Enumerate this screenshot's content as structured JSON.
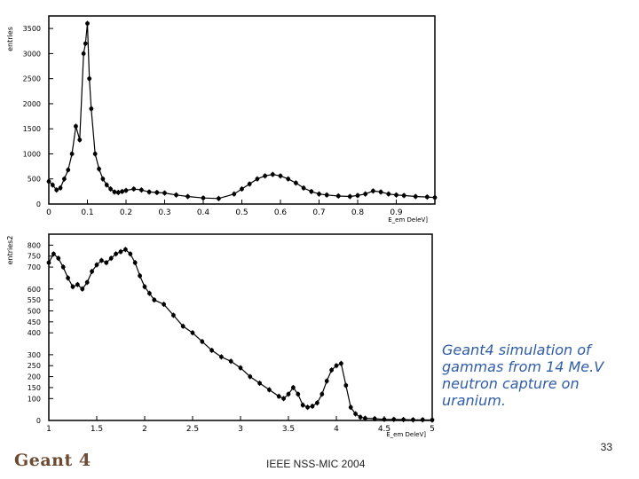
{
  "caption": {
    "lines": [
      "Geant4 simulation of",
      "gammas from 14 Me.V",
      "neutron capture on",
      "uranium."
    ]
  },
  "page_number": "33",
  "footer": "IEEE NSS-MIC 2004",
  "logo": "Geant 4",
  "colors": {
    "line": "#000000",
    "frame": "#000000",
    "caption": "#2f5da8",
    "logo": "#6b4a32"
  },
  "chart_data": [
    {
      "type": "line",
      "ylabel": "entries",
      "xlabel": "E_em DeleV]",
      "xlim": [
        0,
        1.0
      ],
      "ylim": [
        0,
        3750
      ],
      "xticks": [
        0,
        0.1,
        0.2,
        0.3,
        0.4,
        0.5,
        0.6,
        0.7,
        0.8,
        0.9
      ],
      "xtick_labels": [
        "0",
        "0.1",
        "0.2",
        "0.3",
        "0.4",
        "0.5",
        "0.6",
        "0.7",
        "0.8",
        "0.9"
      ],
      "yticks": [
        0,
        500,
        1000,
        1500,
        2000,
        2500,
        3000,
        3500
      ],
      "ytick_labels": [
        "0",
        "500",
        "1000",
        "1500",
        "2000",
        "2500",
        "3000",
        "3500"
      ],
      "series": [
        {
          "x": [
            0.0,
            0.01,
            0.02,
            0.03,
            0.04,
            0.05,
            0.06,
            0.07,
            0.08,
            0.09,
            0.095,
            0.1,
            0.105,
            0.11,
            0.12,
            0.13,
            0.14,
            0.15,
            0.16,
            0.17,
            0.18,
            0.19,
            0.2,
            0.22,
            0.24,
            0.26,
            0.28,
            0.3,
            0.33,
            0.36,
            0.4,
            0.44,
            0.48,
            0.5,
            0.52,
            0.54,
            0.56,
            0.58,
            0.6,
            0.62,
            0.64,
            0.66,
            0.68,
            0.7,
            0.72,
            0.75,
            0.78,
            0.8,
            0.82,
            0.84,
            0.86,
            0.88,
            0.9,
            0.92,
            0.95,
            0.98,
            1.0
          ],
          "y": [
            450,
            380,
            280,
            320,
            500,
            680,
            1000,
            1550,
            1280,
            3000,
            3200,
            3600,
            2500,
            1900,
            1000,
            700,
            500,
            380,
            300,
            240,
            230,
            250,
            270,
            300,
            280,
            240,
            230,
            220,
            180,
            150,
            120,
            110,
            200,
            300,
            400,
            500,
            560,
            590,
            560,
            500,
            420,
            320,
            250,
            200,
            180,
            160,
            150,
            170,
            200,
            260,
            240,
            200,
            180,
            170,
            150,
            140,
            130
          ]
        }
      ]
    },
    {
      "type": "line",
      "ylabel": "entries2",
      "xlabel": "E_em DeleV]",
      "xlim": [
        1,
        5
      ],
      "ylim": [
        0,
        850
      ],
      "xticks": [
        1,
        1.5,
        2,
        2.5,
        3,
        3.5,
        4,
        4.5,
        5
      ],
      "xtick_labels": [
        "1",
        "1.5",
        "2",
        "2.5",
        "3",
        "3.5",
        "4",
        "4.5",
        "5"
      ],
      "yticks": [
        0,
        100,
        150,
        200,
        250,
        300,
        400,
        450,
        500,
        550,
        600,
        700,
        750,
        800
      ],
      "ytick_labels": [
        "0",
        "100",
        "150",
        "200",
        "250",
        "300",
        "400",
        "450",
        "500",
        "550",
        "600",
        "700",
        "750",
        "800"
      ],
      "series": [
        {
          "x": [
            1.0,
            1.05,
            1.1,
            1.15,
            1.2,
            1.25,
            1.3,
            1.35,
            1.4,
            1.45,
            1.5,
            1.55,
            1.6,
            1.65,
            1.7,
            1.75,
            1.8,
            1.85,
            1.9,
            1.95,
            2.0,
            2.05,
            2.1,
            2.2,
            2.3,
            2.4,
            2.5,
            2.6,
            2.7,
            2.8,
            2.9,
            3.0,
            3.1,
            3.2,
            3.3,
            3.4,
            3.45,
            3.5,
            3.55,
            3.6,
            3.65,
            3.7,
            3.75,
            3.8,
            3.85,
            3.9,
            3.95,
            4.0,
            4.05,
            4.1,
            4.15,
            4.2,
            4.25,
            4.3,
            4.4,
            4.5,
            4.6,
            4.7,
            4.8,
            4.9,
            5.0
          ],
          "y": [
            720,
            760,
            740,
            700,
            650,
            610,
            620,
            600,
            630,
            680,
            710,
            730,
            720,
            740,
            760,
            770,
            780,
            760,
            720,
            660,
            610,
            580,
            550,
            530,
            480,
            430,
            400,
            360,
            320,
            290,
            270,
            240,
            200,
            170,
            140,
            110,
            100,
            120,
            150,
            120,
            70,
            60,
            65,
            80,
            120,
            180,
            230,
            250,
            260,
            160,
            60,
            30,
            15,
            10,
            8,
            5,
            5,
            4,
            3,
            3,
            2
          ]
        }
      ]
    }
  ]
}
